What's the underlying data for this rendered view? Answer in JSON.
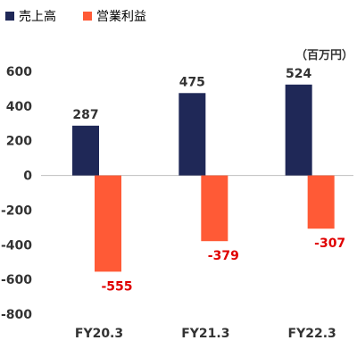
{
  "chart_data": {
    "type": "bar",
    "categories": [
      "FY20.3",
      "FY21.3",
      "FY22.3"
    ],
    "series": [
      {
        "name": "売上高",
        "values": [
          287,
          475,
          524
        ],
        "color": "#1f2857"
      },
      {
        "name": "営業利益",
        "values": [
          -555,
          -379,
          -307
        ],
        "color": "#ff5a36"
      }
    ],
    "data_labels": [
      [
        "287",
        "475",
        "524"
      ],
      [
        "-555",
        "-379",
        "-307"
      ]
    ],
    "unit": "（百万円）",
    "ylim": [
      -800,
      600
    ],
    "yticks": [
      600,
      400,
      200,
      0,
      -200,
      -400,
      -600,
      -800
    ],
    "ytick_labels": [
      "600",
      "400",
      "200",
      "0",
      "-200",
      "-400",
      "-600",
      "-800"
    ],
    "legend_position": "top-left",
    "grid": false,
    "title": "",
    "xlabel": "",
    "ylabel": ""
  }
}
